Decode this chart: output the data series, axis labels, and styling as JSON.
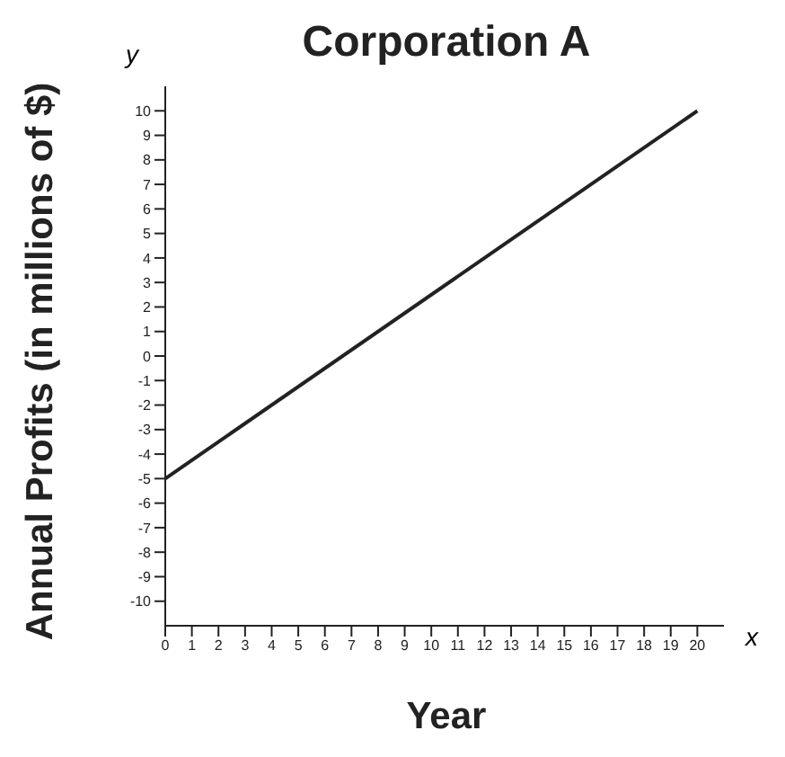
{
  "chart_data": {
    "type": "line",
    "title": "Corporation A",
    "xlabel": "Year",
    "ylabel": "Annual Profits (in millions of $)",
    "x": [
      0,
      20
    ],
    "series": [
      {
        "color": "#222222",
        "values": [
          -5,
          10
        ]
      }
    ],
    "xlim": [
      0,
      21
    ],
    "ylim": [
      -11,
      11
    ],
    "xticks": [
      0,
      1,
      2,
      3,
      4,
      5,
      6,
      7,
      8,
      9,
      10,
      11,
      12,
      13,
      14,
      15,
      16,
      17,
      18,
      19,
      20
    ],
    "yticks": [
      -10,
      -9,
      -8,
      -7,
      -6,
      -5,
      -4,
      -3,
      -2,
      -1,
      0,
      1,
      2,
      3,
      4,
      5,
      6,
      7,
      8,
      9,
      10
    ],
    "annotations": [
      "y",
      "x"
    ],
    "grid": false,
    "marker": "none",
    "line_style": "solid"
  }
}
